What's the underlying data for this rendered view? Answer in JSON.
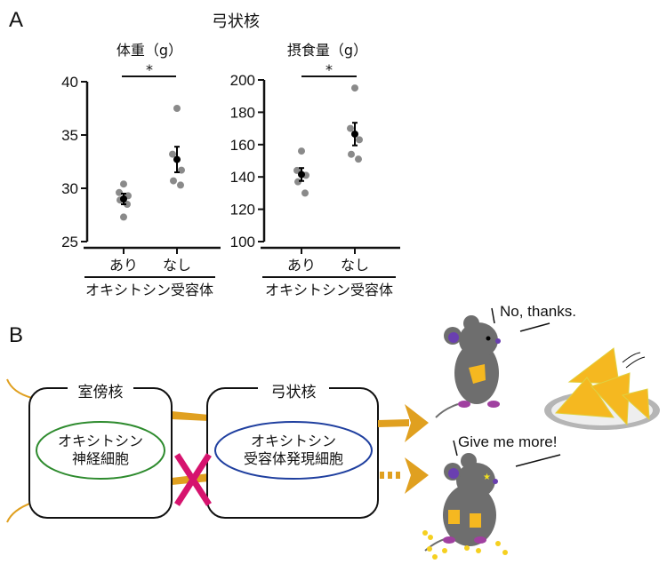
{
  "panels": {
    "a": "A",
    "b": "B"
  },
  "figure_title": "弓状核",
  "colors": {
    "dot": "#8a8a8a",
    "mean": "#000000",
    "arrow": "#e0a020",
    "pvn_ellipse": "#2e8b2e",
    "arc_ellipse": "#1f3f9f",
    "cross": "#d6136e",
    "mouse": "#6e6e6e",
    "mouse_accent": "#7b4fae",
    "cheese": "#f5b820"
  },
  "chart_data": [
    {
      "type": "scatter",
      "title": "体重（g）",
      "categories": [
        "あり",
        "なし"
      ],
      "group_label": "オキシトシン受容体",
      "ylim": [
        25,
        40
      ],
      "yticks": [
        "25",
        "30",
        "35",
        "40"
      ],
      "points": [
        [
          30.4,
          29.6,
          29.3,
          28.9,
          28.5,
          27.3
        ],
        [
          37.5,
          33.2,
          31.7,
          30.7,
          30.3
        ]
      ],
      "mean": [
        29.0,
        32.7
      ],
      "sem": [
        0.5,
        1.2
      ],
      "significance": "*",
      "grid": false
    },
    {
      "type": "scatter",
      "title": "摂食量（g）",
      "categories": [
        "あり",
        "なし"
      ],
      "group_label": "オキシトシン受容体",
      "ylim": [
        100,
        200
      ],
      "yticks": [
        "100",
        "120",
        "140",
        "160",
        "180",
        "200"
      ],
      "points": [
        [
          156,
          144,
          141,
          137,
          130
        ],
        [
          195,
          170,
          163,
          154,
          151
        ]
      ],
      "mean": [
        141.5,
        166.5
      ],
      "sem": [
        4,
        7
      ],
      "significance": "*",
      "grid": false
    }
  ],
  "diagram": {
    "pvn": {
      "label": "室傍核",
      "cell_line1": "オキシトシン",
      "cell_line2": "神経細胞"
    },
    "arc": {
      "label": "弓状核",
      "cell_line1": "オキシトシン",
      "cell_line2": "受容体発現細胞"
    },
    "mouse_top_speech": "No, thanks.",
    "mouse_bottom_speech": "Give me more!"
  }
}
